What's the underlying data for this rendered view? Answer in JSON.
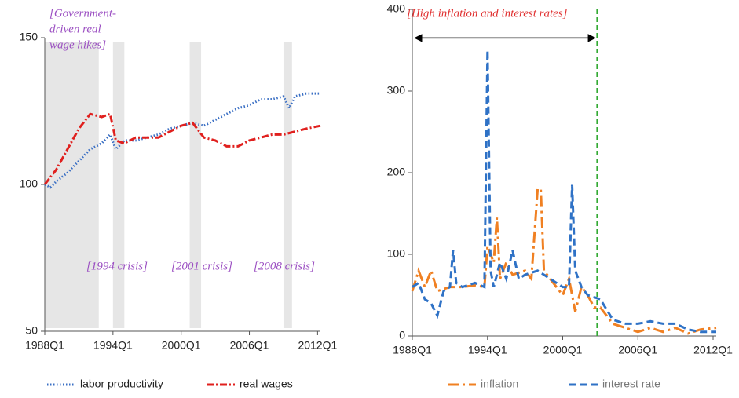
{
  "chart_data": [
    {
      "type": "line",
      "xlim": [
        1988,
        2012.25
      ],
      "xticks": [
        {
          "value": 1988,
          "label": "1988Q1"
        },
        {
          "value": 1994,
          "label": "1994Q1"
        },
        {
          "value": 2000,
          "label": "2000Q1"
        },
        {
          "value": 2006,
          "label": "2006Q1"
        },
        {
          "value": 2012,
          "label": "2012Q1"
        }
      ],
      "ylim": [
        50,
        150
      ],
      "yticks": [
        50,
        100,
        150
      ],
      "shaded_periods": [
        [
          1988,
          1992.75
        ],
        [
          1994,
          1995
        ],
        [
          2000.75,
          2001.75
        ],
        [
          2009,
          2009.75
        ]
      ],
      "shade_color": "#e6e6e6",
      "annotations": [
        [
          "[Government-",
          "driven real",
          "wage hikes]"
        ],
        [
          "[1994 crisis]"
        ],
        [
          "[2001 crisis]"
        ],
        [
          "[2008 crisis]"
        ]
      ],
      "annotation_color": "#9b4fc2",
      "series": [
        {
          "name": "labor productivity",
          "color": "#3a6fc4",
          "dash": "dotted",
          "x": [
            1988,
            1988.5,
            1989,
            1990,
            1991,
            1992,
            1993,
            1993.75,
            1994.25,
            1995,
            1996,
            1997,
            1998,
            1999,
            2000,
            2001,
            2002,
            2003,
            2004,
            2005,
            2006,
            2007,
            2008,
            2009,
            2009.5,
            2010,
            2011,
            2012.25
          ],
          "values": [
            100,
            99,
            101,
            104,
            108,
            112,
            114,
            117,
            112,
            115,
            115,
            116,
            117,
            119,
            120,
            121,
            120,
            122,
            124,
            126,
            127,
            129,
            129,
            130,
            126,
            130,
            131,
            131
          ]
        },
        {
          "name": "real wages",
          "color": "#e0201e",
          "dash": "dashdot",
          "x": [
            1988,
            1989,
            1990,
            1991,
            1992,
            1993,
            1993.75,
            1994.25,
            1995,
            1996,
            1997,
            1998,
            1999,
            2000,
            2001,
            2002,
            2003,
            2004,
            2005,
            2006,
            2007,
            2008,
            2009,
            2010,
            2011,
            2012.25
          ],
          "values": [
            100,
            105,
            112,
            119,
            124,
            123,
            124,
            115,
            114,
            116,
            116,
            116,
            118,
            120,
            121,
            116,
            115,
            113,
            113,
            115,
            116,
            117,
            117,
            118,
            119,
            120
          ]
        }
      ]
    },
    {
      "type": "line",
      "xlim": [
        1988,
        2012.25
      ],
      "xticks": [
        {
          "value": 1988,
          "label": "1988Q1"
        },
        {
          "value": 1994,
          "label": "1994Q1"
        },
        {
          "value": 2000,
          "label": "2000Q1"
        },
        {
          "value": 2006,
          "label": "2006Q1"
        },
        {
          "value": 2012,
          "label": "2012Q1"
        }
      ],
      "ylim": [
        0,
        400
      ],
      "yticks": [
        0,
        100,
        200,
        300,
        400
      ],
      "vline": 2002.75,
      "vline_color": "#33aa33",
      "arrow": {
        "x": [
          1988.2,
          2002.6
        ],
        "y": 365
      },
      "annotations": [
        [
          "[High inflation and interest rates]"
        ]
      ],
      "annotation_color": "#e03030",
      "series": [
        {
          "name": "inflation",
          "color": "#f08022",
          "dash": "longdashdot",
          "x": [
            1988,
            1988.5,
            1989,
            1989.5,
            1990,
            1991,
            1992,
            1993,
            1993.75,
            1994,
            1994.5,
            1994.75,
            1995,
            1995.5,
            1996,
            1997,
            1997.5,
            1998,
            1998.25,
            1998.5,
            1999,
            2000,
            2000.5,
            2001,
            2001.5,
            2002,
            2002.5,
            2003,
            2004,
            2005,
            2006,
            2007,
            2008,
            2009,
            2010,
            2011,
            2012.25
          ],
          "values": [
            55,
            80,
            60,
            80,
            55,
            60,
            60,
            62,
            60,
            110,
            90,
            145,
            70,
            90,
            75,
            80,
            70,
            180,
            180,
            80,
            70,
            50,
            70,
            30,
            60,
            50,
            35,
            35,
            15,
            10,
            5,
            10,
            5,
            10,
            3,
            8,
            10
          ]
        },
        {
          "name": "interest rate",
          "color": "#2f72c6",
          "dash": "dashed",
          "x": [
            1988,
            1988.5,
            1989,
            1989.5,
            1990,
            1990.5,
            1991,
            1991.25,
            1991.5,
            1992,
            1993,
            1993.75,
            1994,
            1994.25,
            1994.5,
            1995,
            1995.5,
            1996,
            1996.5,
            1997,
            1998,
            1999,
            2000,
            2000.5,
            2000.75,
            2001,
            2001.5,
            2002,
            2003,
            2004,
            2005,
            2006,
            2007,
            2008,
            2009,
            2010,
            2011,
            2012.25
          ],
          "values": [
            60,
            65,
            45,
            40,
            25,
            55,
            60,
            105,
            65,
            60,
            65,
            60,
            350,
            80,
            60,
            90,
            70,
            105,
            70,
            75,
            80,
            70,
            60,
            60,
            185,
            80,
            60,
            50,
            45,
            20,
            15,
            15,
            18,
            15,
            15,
            8,
            5,
            5
          ]
        }
      ]
    }
  ]
}
